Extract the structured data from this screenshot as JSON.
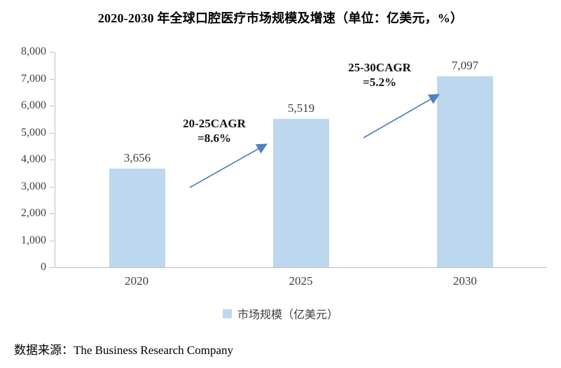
{
  "title": "2020-2030 年全球口腔医疗市场规模及增速（单位：亿美元，%）",
  "source": "数据来源：The Business Research Company",
  "legend": {
    "label": "市场规模（亿美元）",
    "swatch_color": "#bdd7ee"
  },
  "colors": {
    "bar": "#bdd7ee",
    "arrow": "#4f81bd",
    "axis": "#bfbfbf",
    "label_text": "#404040"
  },
  "chart_data": {
    "type": "bar",
    "title": "2020-2030 年全球口腔医疗市场规模及增速（单位：亿美元，%）",
    "categories": [
      "2020",
      "2025",
      "2030"
    ],
    "values": [
      3656,
      5519,
      7097
    ],
    "value_labels": [
      "3,656",
      "5,519",
      "7,097"
    ],
    "xlabel": "",
    "ylabel": "",
    "ylim": [
      0,
      8000
    ],
    "ytick_step": 1000,
    "ytick_labels": [
      "0",
      "1,000",
      "2,000",
      "3,000",
      "4,000",
      "5,000",
      "6,000",
      "7,000",
      "8,000"
    ],
    "grid": false,
    "legend_entries": [
      "市场规模（亿美元）"
    ],
    "legend_position": "bottom",
    "annotations": [
      {
        "lines": [
          "20-25CAGR",
          "=8.6%"
        ],
        "between": [
          "2020",
          "2025"
        ]
      },
      {
        "lines": [
          "25-30CAGR",
          "=5.2%"
        ],
        "between": [
          "2025",
          "2030"
        ]
      }
    ]
  }
}
